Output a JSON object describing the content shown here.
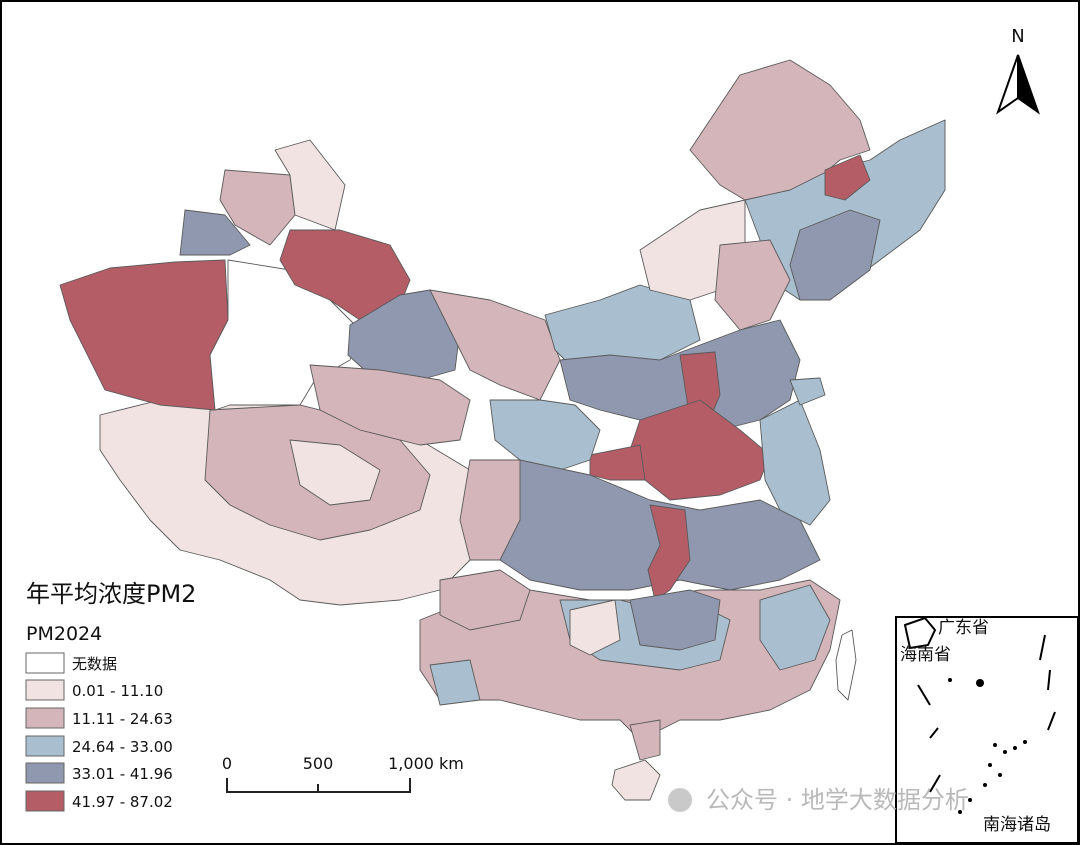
{
  "map": {
    "title": "年平均浓度PM2",
    "subtitle": "PM2024",
    "north_label": "N",
    "legend": [
      {
        "label": "无数据",
        "color": "#ffffff"
      },
      {
        "label": "0.01 - 11.10",
        "color": "#f1e3e2"
      },
      {
        "label": "11.11 - 24.63",
        "color": "#d3b5ba"
      },
      {
        "label": "24.64 - 33.00",
        "color": "#a9bfcf"
      },
      {
        "label": "33.01 - 41.96",
        "color": "#8f98ae"
      },
      {
        "label": "41.97 - 87.02",
        "color": "#b45d67"
      }
    ],
    "scale_bar": {
      "ticks": [
        "0",
        "500",
        "1,000 km"
      ]
    },
    "inset": {
      "labels": [
        "广东省",
        "海南省",
        "南海诸岛"
      ]
    },
    "watermark": "公众号 · 地学大数据分析"
  }
}
